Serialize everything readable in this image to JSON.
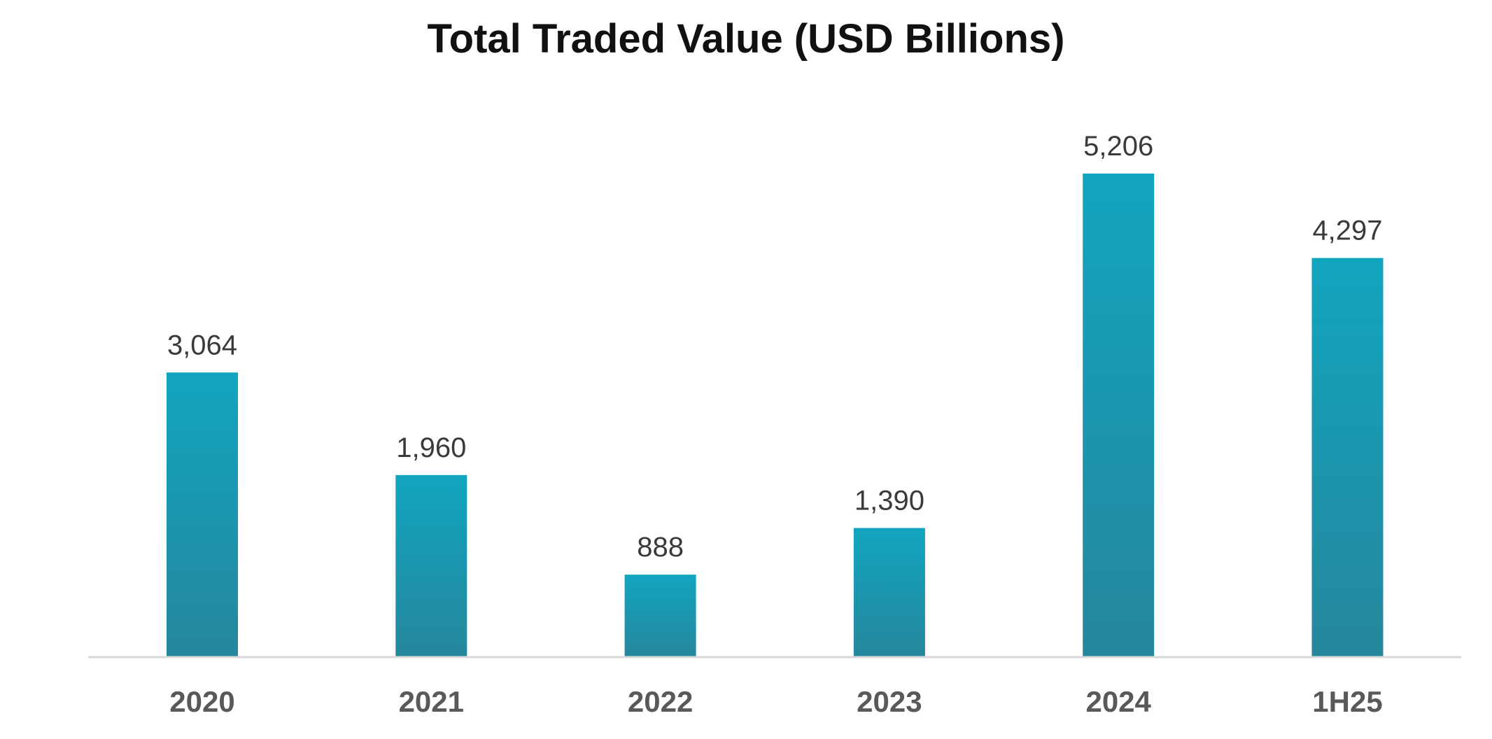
{
  "chart_data": {
    "type": "bar",
    "title": "Total Traded Value (USD Billions)",
    "xlabel": "",
    "ylabel": "",
    "categories": [
      "2020",
      "2021",
      "2022",
      "2023",
      "2024",
      "1H25"
    ],
    "values": [
      3064,
      1960,
      888,
      1390,
      5206,
      4297
    ],
    "value_labels": [
      "3,064",
      "1,960",
      "888",
      "1,390",
      "5,206",
      "4,297"
    ],
    "ylim": [
      0,
      5206
    ],
    "grid": false,
    "legend": "none",
    "colors": {
      "bar_top": "#12A5C0",
      "bar_bottom": "#25879C",
      "axis": "#D9D9D9"
    }
  }
}
